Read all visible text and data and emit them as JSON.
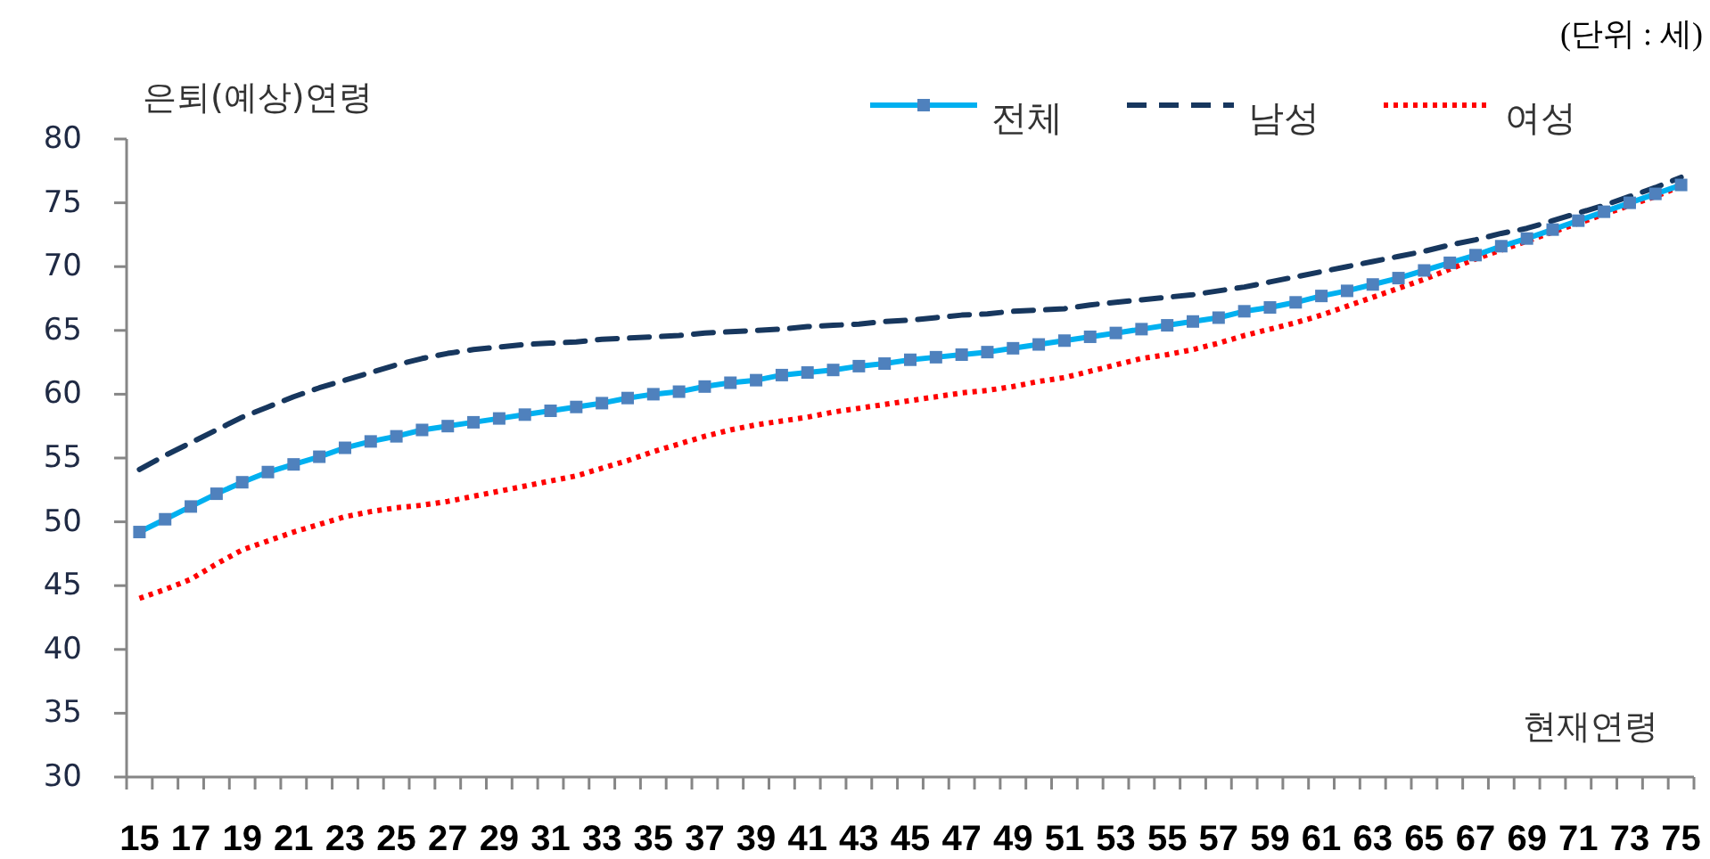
{
  "chart_data": {
    "type": "line",
    "ylabel": "은퇴(예상)연령",
    "xlabel": "현재연령",
    "annotations": [
      "(단위 : 세)"
    ],
    "legend": "top right",
    "categories": [
      "15",
      null,
      "17",
      null,
      "19",
      null,
      "21",
      null,
      "23",
      null,
      "25",
      null,
      "27",
      null,
      "29",
      null,
      "31",
      null,
      "33",
      null,
      "35",
      null,
      "37",
      null,
      "39",
      null,
      "41",
      null,
      "43",
      null,
      "45",
      null,
      "47",
      null,
      "49",
      null,
      "51",
      null,
      "53",
      null,
      "55",
      null,
      "57",
      null,
      "59",
      null,
      "61",
      null,
      "63",
      null,
      "65",
      null,
      "67",
      null,
      "69",
      null,
      "71",
      null,
      "73",
      null,
      "75"
    ],
    "ylim": [
      30,
      80
    ],
    "yticks": [
      30,
      35,
      40,
      45,
      50,
      55,
      60,
      65,
      70,
      75,
      80
    ],
    "series": [
      {
        "name": "전체",
        "color": "#00b0f0",
        "marker": "square",
        "line_style": "solid",
        "colors": [
          "#4f81bd",
          "#4f81bd",
          "#4f81bd",
          "#4f81bd",
          "#4f81bd",
          "#4f81bd",
          "#4f81bd",
          "#4f81bd",
          "#4f81bd",
          "#4f81bd",
          "#4f81bd",
          "#4f81bd",
          "#4f81bd",
          "#4f81bd",
          "#4f81bd",
          "#4f81bd",
          "#4f81bd",
          "#4f81bd",
          "#4f81bd",
          "#4f81bd",
          "#4f81bd",
          "#4f81bd",
          "#4f81bd",
          "#4f81bd",
          "#4f81bd",
          "#4f81bd",
          "#4f81bd",
          "#4f81bd",
          "#4f81bd",
          "#4f81bd",
          "#4f81bd",
          "#4f81bd",
          "#4f81bd",
          "#4f81bd",
          "#4f81bd",
          "#4f81bd",
          "#4f81bd",
          "#4f81bd",
          "#4f81bd",
          "#4f81bd",
          "#4f81bd",
          "#4f81bd",
          "#4f81bd",
          "#4f81bd",
          "#4f81bd",
          "#4f81bd",
          "#4f81bd",
          "#4f81bd",
          "#4f81bd",
          "#4f81bd",
          "#4f81bd",
          "#4f81bd",
          "#4f81bd",
          "#4f81bd",
          "#4f81bd",
          "#4f81bd",
          "#4f81bd",
          "#4f81bd",
          "#4f81bd",
          "#4f81bd",
          "#4f81bd"
        ],
        "values": [
          49.2,
          50.2,
          51.2,
          52.2,
          53.1,
          53.9,
          54.5,
          55.1,
          55.8,
          56.3,
          56.7,
          57.2,
          57.5,
          57.8,
          58.1,
          58.4,
          58.7,
          59.0,
          59.3,
          59.7,
          60.0,
          60.2,
          60.6,
          60.9,
          61.1,
          61.5,
          61.7,
          61.9,
          62.2,
          62.4,
          62.7,
          62.9,
          63.1,
          63.3,
          63.6,
          63.9,
          64.2,
          64.5,
          64.8,
          65.1,
          65.4,
          65.7,
          66.0,
          66.5,
          66.8,
          67.2,
          67.7,
          68.1,
          68.6,
          69.1,
          69.7,
          70.3,
          70.9,
          71.6,
          72.2,
          72.9,
          73.6,
          74.3,
          75.0,
          75.7,
          76.4
        ]
      },
      {
        "name": "남성",
        "color": "#17375e",
        "marker": "none",
        "line_style": "dashed",
        "values": [
          54.1,
          55.2,
          56.2,
          57.2,
          58.2,
          59.0,
          59.8,
          60.5,
          61.1,
          61.7,
          62.3,
          62.8,
          63.2,
          63.5,
          63.7,
          63.9,
          64.0,
          64.1,
          64.3,
          64.4,
          64.5,
          64.6,
          64.8,
          64.9,
          65.0,
          65.1,
          65.3,
          65.4,
          65.5,
          65.7,
          65.8,
          66.0,
          66.2,
          66.3,
          66.5,
          66.6,
          66.7,
          67.0,
          67.2,
          67.4,
          67.6,
          67.8,
          68.1,
          68.4,
          68.8,
          69.2,
          69.6,
          70.0,
          70.4,
          70.8,
          71.2,
          71.7,
          72.1,
          72.6,
          73.0,
          73.6,
          74.2,
          74.8,
          75.5,
          76.2,
          77.0
        ]
      },
      {
        "name": "여성",
        "color": "#ff0000",
        "marker": "none",
        "line_style": "dotted",
        "values": [
          44.0,
          44.7,
          45.5,
          46.7,
          47.8,
          48.5,
          49.2,
          49.8,
          50.4,
          50.8,
          51.1,
          51.3,
          51.6,
          52.0,
          52.4,
          52.8,
          53.2,
          53.6,
          54.2,
          54.8,
          55.5,
          56.1,
          56.7,
          57.2,
          57.6,
          57.9,
          58.2,
          58.6,
          58.9,
          59.2,
          59.5,
          59.8,
          60.1,
          60.3,
          60.6,
          61.0,
          61.3,
          61.8,
          62.3,
          62.8,
          63.1,
          63.5,
          64.0,
          64.6,
          65.1,
          65.6,
          66.2,
          66.9,
          67.6,
          68.3,
          69.0,
          69.8,
          70.6,
          71.3,
          72.0,
          72.7,
          73.4,
          74.1,
          74.8,
          75.5,
          76.3
        ]
      }
    ]
  }
}
